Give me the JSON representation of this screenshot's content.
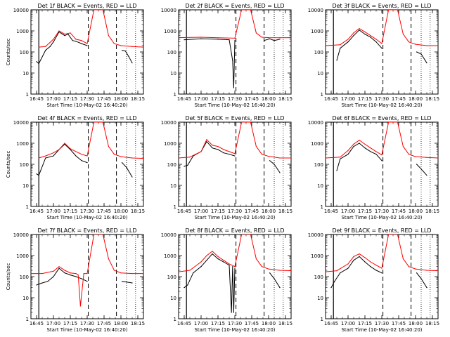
{
  "chart_data": [
    {
      "type": "line",
      "title": "Det 1f BLACK = Events, RED = LLD",
      "xlabel": "Start Time (10-May-02 16:40:20)",
      "ylabel": "Counts/sec",
      "xlim": [
        "16:40",
        "18:20"
      ],
      "ylim": [
        1,
        10000
      ],
      "yscale": "log",
      "xtick_labels": [
        "16:45",
        "17:00",
        "17:15",
        "17:30",
        "17:45",
        "18:00",
        "18:15"
      ],
      "ytick_labels": [
        "1",
        "10",
        "100",
        "1000",
        "10000"
      ],
      "series": [
        {
          "color": "#000000",
          "x": [
            "16:45",
            "16:47",
            "16:53",
            "16:57",
            "17:00",
            "17:05",
            "17:10",
            "17:13",
            "17:17",
            "17:20",
            "17:25",
            "17:30",
            "17:31",
            "18:01",
            "18:04",
            "18:07",
            "18:10"
          ],
          "values": [
            35,
            28,
            120,
            180,
            300,
            900,
            600,
            700,
            350,
            320,
            250,
            200,
            null,
            120,
            110,
            60,
            30
          ]
        },
        {
          "color": "#ff0000",
          "x": [
            "16:47",
            "16:53",
            "17:00",
            "17:05",
            "17:10",
            "17:15",
            "17:20",
            "17:25",
            "17:30",
            "17:36",
            "17:40",
            "17:44",
            "17:49",
            "17:54",
            "18:00",
            "18:10",
            "18:20"
          ],
          "values": [
            170,
            180,
            400,
            1000,
            700,
            800,
            400,
            350,
            250,
            10000,
            10000,
            10000,
            600,
            250,
            200,
            180,
            170
          ]
        }
      ],
      "dashed_lines": [
        "17:31",
        "17:56"
      ],
      "dotted_lines": [
        "18:05",
        "18:13"
      ],
      "solid_lines": [
        "16:47"
      ]
    },
    {
      "type": "line",
      "title": "Det 2f BLACK = Events, RED = LLD",
      "xlabel": "Start Time (10-May-02 16:40:20)",
      "ylabel": "",
      "xlim": [
        "16:40",
        "18:20"
      ],
      "ylim": [
        1,
        10000
      ],
      "yscale": "log",
      "xtick_labels": [
        "16:45",
        "17:00",
        "17:15",
        "17:30",
        "17:45",
        "18:00",
        "18:15"
      ],
      "ytick_labels": [
        "1",
        "10",
        "100",
        "1000",
        "10000"
      ],
      "series": [
        {
          "color": "#000000",
          "x": [
            "16:45",
            "17:00",
            "17:15",
            "17:25",
            "17:28",
            "17:29",
            "17:30",
            "17:31",
            "17:56",
            "18:01",
            "18:05",
            "18:10"
          ],
          "values": [
            380,
            420,
            400,
            380,
            40,
            2,
            350,
            null,
            350,
            420,
            350,
            400
          ]
        },
        {
          "color": "#ff0000",
          "x": [
            "16:40",
            "17:00",
            "17:15",
            "17:30",
            "17:36",
            "17:40",
            "17:44",
            "17:49",
            "17:54",
            "18:00",
            "18:10",
            "18:20"
          ],
          "values": [
            480,
            500,
            470,
            450,
            10000,
            10000,
            10000,
            800,
            500,
            480,
            470,
            480
          ]
        }
      ],
      "dashed_lines": [
        "17:31",
        "17:56"
      ],
      "dotted_lines": [
        "18:05",
        "18:13"
      ],
      "solid_lines": [
        "16:47"
      ]
    },
    {
      "type": "line",
      "title": "Det 3f BLACK = Events, RED = LLD",
      "xlabel": "Start Time (10-May-02 16:40:20)",
      "ylabel": "",
      "xlim": [
        "16:40",
        "18:20"
      ],
      "ylim": [
        1,
        10000
      ],
      "yscale": "log",
      "xtick_labels": [
        "16:45",
        "17:00",
        "17:15",
        "17:30",
        "17:45",
        "18:00",
        "18:15"
      ],
      "ytick_labels": [
        "1",
        "10",
        "100",
        "1000",
        "10000"
      ],
      "series": [
        {
          "color": "#000000",
          "x": [
            "16:50",
            "16:53",
            "17:00",
            "17:05",
            "17:10",
            "17:15",
            "17:20",
            "17:25",
            "17:30",
            "17:31",
            "18:01",
            "18:05",
            "18:10"
          ],
          "values": [
            40,
            150,
            300,
            600,
            1100,
            700,
            500,
            300,
            150,
            null,
            100,
            80,
            30
          ]
        },
        {
          "color": "#ff0000",
          "x": [
            "16:40",
            "16:53",
            "17:00",
            "17:05",
            "17:10",
            "17:15",
            "17:20",
            "17:25",
            "17:30",
            "17:36",
            "17:40",
            "17:44",
            "17:49",
            "17:54",
            "18:00",
            "18:10",
            "18:20"
          ],
          "values": [
            200,
            220,
            400,
            800,
            1300,
            900,
            600,
            400,
            250,
            10000,
            10000,
            10000,
            700,
            300,
            230,
            200,
            200
          ]
        }
      ],
      "dashed_lines": [
        "17:31",
        "17:56"
      ],
      "dotted_lines": [
        "18:05",
        "18:13"
      ],
      "solid_lines": [
        "16:47"
      ]
    },
    {
      "type": "line",
      "title": "Det 4f BLACK = Events, RED = LLD",
      "xlabel": "Start Time (10-May-02 16:40:20)",
      "ylabel": "Counts/sec",
      "xlim": [
        "16:40",
        "18:20"
      ],
      "ylim": [
        1,
        10000
      ],
      "yscale": "log",
      "xtick_labels": [
        "16:45",
        "17:00",
        "17:15",
        "17:30",
        "17:45",
        "18:00",
        "18:15"
      ],
      "ytick_labels": [
        "1",
        "10",
        "100",
        "1000",
        "10000"
      ],
      "series": [
        {
          "color": "#000000",
          "x": [
            "16:45",
            "16:47",
            "16:53",
            "17:00",
            "17:05",
            "17:10",
            "17:15",
            "17:20",
            "17:25",
            "17:30",
            "17:31",
            "18:01",
            "18:05",
            "18:10"
          ],
          "values": [
            35,
            30,
            200,
            250,
            500,
            900,
            500,
            250,
            150,
            120,
            null,
            120,
            70,
            25
          ]
        },
        {
          "color": "#ff0000",
          "x": [
            "16:47",
            "16:53",
            "17:00",
            "17:05",
            "17:10",
            "17:15",
            "17:20",
            "17:25",
            "17:30",
            "17:36",
            "17:40",
            "17:44",
            "17:49",
            "17:54",
            "18:00",
            "18:10",
            "18:20"
          ],
          "values": [
            200,
            250,
            350,
            500,
            1000,
            550,
            400,
            300,
            250,
            10000,
            10000,
            10000,
            700,
            300,
            230,
            200,
            190
          ]
        }
      ],
      "dashed_lines": [
        "17:31",
        "17:56"
      ],
      "dotted_lines": [
        "18:05",
        "18:13"
      ],
      "solid_lines": [
        "16:47"
      ]
    },
    {
      "type": "line",
      "title": "Det 5f BLACK = Events, RED = LLD",
      "xlabel": "Start Time (10-May-02 16:40:20)",
      "ylabel": "",
      "xlim": [
        "16:40",
        "18:20"
      ],
      "ylim": [
        1,
        10000
      ],
      "yscale": "log",
      "xtick_labels": [
        "16:45",
        "17:00",
        "17:15",
        "17:30",
        "17:45",
        "18:00",
        "18:15"
      ],
      "ytick_labels": [
        "1",
        "10",
        "100",
        "1000",
        "10000"
      ],
      "series": [
        {
          "color": "#000000",
          "x": [
            "16:45",
            "16:48",
            "16:53",
            "17:00",
            "17:05",
            "17:10",
            "17:15",
            "17:20",
            "17:25",
            "17:30",
            "17:31",
            "18:01",
            "18:05",
            "18:10"
          ],
          "values": [
            80,
            90,
            250,
            400,
            1200,
            600,
            500,
            350,
            300,
            250,
            null,
            150,
            100,
            40
          ]
        },
        {
          "color": "#ff0000",
          "x": [
            "16:40",
            "16:50",
            "17:00",
            "17:05",
            "17:10",
            "17:15",
            "17:20",
            "17:25",
            "17:30",
            "17:36",
            "17:40",
            "17:44",
            "17:49",
            "17:54",
            "18:00",
            "18:10",
            "18:20"
          ],
          "values": [
            200,
            220,
            400,
            1500,
            800,
            700,
            500,
            400,
            320,
            10000,
            10000,
            10000,
            700,
            300,
            240,
            200,
            200
          ]
        }
      ],
      "dashed_lines": [
        "17:31",
        "17:56"
      ],
      "dotted_lines": [
        "18:05",
        "18:13"
      ],
      "solid_lines": [
        "16:47"
      ]
    },
    {
      "type": "line",
      "title": "Det 6f BLACK = Events, RED = LLD",
      "xlabel": "Start Time (10-May-02 16:40:20)",
      "ylabel": "",
      "xlim": [
        "16:40",
        "18:20"
      ],
      "ylim": [
        1,
        10000
      ],
      "yscale": "log",
      "xtick_labels": [
        "16:45",
        "17:00",
        "17:15",
        "17:30",
        "17:45",
        "18:00",
        "18:15"
      ],
      "ytick_labels": [
        "1",
        "10",
        "100",
        "1000",
        "10000"
      ],
      "series": [
        {
          "color": "#000000",
          "x": [
            "16:50",
            "16:53",
            "17:00",
            "17:05",
            "17:10",
            "17:15",
            "17:20",
            "17:25",
            "17:30",
            "17:31",
            "18:01",
            "18:05",
            "18:10"
          ],
          "values": [
            50,
            180,
            300,
            700,
            1000,
            600,
            400,
            300,
            150,
            null,
            100,
            60,
            30
          ]
        },
        {
          "color": "#ff0000",
          "x": [
            "16:40",
            "16:53",
            "17:00",
            "17:05",
            "17:10",
            "17:15",
            "17:20",
            "17:25",
            "17:30",
            "17:36",
            "17:40",
            "17:44",
            "17:49",
            "17:54",
            "18:00",
            "18:10",
            "18:20"
          ],
          "values": [
            200,
            220,
            450,
            900,
            1400,
            900,
            600,
            400,
            280,
            10000,
            10000,
            10000,
            700,
            300,
            230,
            210,
            200
          ]
        }
      ],
      "dashed_lines": [
        "17:31",
        "17:56"
      ],
      "dotted_lines": [
        "18:05",
        "18:13"
      ],
      "solid_lines": [
        "16:47"
      ]
    },
    {
      "type": "line",
      "title": "Det 7f BLACK = Events, RED = LLD",
      "xlabel": "Start Time (10-May-02 16:40:20)",
      "ylabel": "Counts/sec",
      "xlim": [
        "16:40",
        "18:20"
      ],
      "ylim": [
        1,
        10000
      ],
      "yscale": "log",
      "xtick_labels": [
        "16:45",
        "17:00",
        "17:15",
        "17:30",
        "17:45",
        "18:00",
        "18:15"
      ],
      "ytick_labels": [
        "1",
        "10",
        "100",
        "1000",
        "10000"
      ],
      "series": [
        {
          "color": "#000000",
          "x": [
            "16:45",
            "16:50",
            "16:55",
            "17:00",
            "17:05",
            "17:10",
            "17:15",
            "17:20",
            "17:25",
            "17:30",
            "17:31",
            "18:01",
            "18:05",
            "18:10"
          ],
          "values": [
            40,
            50,
            60,
            100,
            250,
            150,
            120,
            100,
            80,
            60,
            null,
            60,
            55,
            50
          ]
        },
        {
          "color": "#ff0000",
          "x": [
            "16:40",
            "16:50",
            "17:00",
            "17:05",
            "17:10",
            "17:15",
            "17:20",
            "17:22",
            "17:24",
            "17:27",
            "17:30",
            "17:36",
            "17:40",
            "17:44",
            "17:49",
            "17:54",
            "18:00",
            "18:10",
            "18:20"
          ],
          "values": [
            140,
            140,
            180,
            300,
            200,
            150,
            140,
            120,
            4,
            140,
            140,
            10000,
            10000,
            10000,
            700,
            200,
            150,
            140,
            140
          ]
        }
      ],
      "dashed_lines": [
        "17:31",
        "17:56"
      ],
      "dotted_lines": [
        "18:05",
        "18:13"
      ],
      "solid_lines": [
        "16:47"
      ]
    },
    {
      "type": "line",
      "title": "Det 8f BLACK = Events, RED = LLD",
      "xlabel": "Start Time (10-May-02 16:40:20)",
      "ylabel": "",
      "xlim": [
        "16:40",
        "18:20"
      ],
      "ylim": [
        1,
        10000
      ],
      "yscale": "log",
      "xtick_labels": [
        "16:45",
        "17:00",
        "17:15",
        "17:30",
        "17:45",
        "18:00",
        "18:15"
      ],
      "ytick_labels": [
        "1",
        "10",
        "100",
        "1000",
        "10000"
      ],
      "series": [
        {
          "color": "#000000",
          "x": [
            "16:45",
            "16:48",
            "16:53",
            "17:00",
            "17:05",
            "17:10",
            "17:15",
            "17:20",
            "17:25",
            "17:27",
            "17:28",
            "17:29",
            "17:30",
            "17:31",
            "18:01",
            "18:05",
            "18:10"
          ],
          "values": [
            30,
            40,
            150,
            300,
            600,
            1200,
            700,
            500,
            350,
            2,
            300,
            2,
            250,
            null,
            150,
            80,
            30
          ]
        },
        {
          "color": "#ff0000",
          "x": [
            "16:40",
            "16:50",
            "17:00",
            "17:05",
            "17:10",
            "17:15",
            "17:20",
            "17:25",
            "17:30",
            "17:36",
            "17:40",
            "17:44",
            "17:49",
            "17:54",
            "18:00",
            "18:10",
            "18:20"
          ],
          "values": [
            170,
            200,
            500,
            1000,
            1600,
            900,
            600,
            400,
            300,
            10000,
            10000,
            10000,
            700,
            300,
            230,
            200,
            190
          ]
        }
      ],
      "dashed_lines": [
        "17:31",
        "17:56"
      ],
      "dotted_lines": [
        "18:05",
        "18:13"
      ],
      "solid_lines": [
        "16:47"
      ]
    },
    {
      "type": "line",
      "title": "Det 9f BLACK = Events, RED = LLD",
      "xlabel": "Start Time (10-May-02 16:40:20)",
      "ylabel": "",
      "xlim": [
        "16:40",
        "18:20"
      ],
      "ylim": [
        1,
        10000
      ],
      "yscale": "log",
      "xtick_labels": [
        "16:45",
        "17:00",
        "17:15",
        "17:30",
        "17:45",
        "18:00",
        "18:15"
      ],
      "ytick_labels": [
        "1",
        "10",
        "100",
        "1000",
        "10000"
      ],
      "series": [
        {
          "color": "#000000",
          "x": [
            "16:45",
            "16:48",
            "16:53",
            "17:00",
            "17:05",
            "17:10",
            "17:15",
            "17:20",
            "17:25",
            "17:30",
            "17:31",
            "18:01",
            "18:05",
            "18:10"
          ],
          "values": [
            30,
            60,
            150,
            250,
            600,
            900,
            500,
            300,
            200,
            150,
            null,
            150,
            80,
            30
          ]
        },
        {
          "color": "#ff0000",
          "x": [
            "16:40",
            "16:50",
            "17:00",
            "17:05",
            "17:10",
            "17:15",
            "17:20",
            "17:25",
            "17:30",
            "17:36",
            "17:40",
            "17:44",
            "17:49",
            "17:54",
            "18:00",
            "18:10",
            "18:20"
          ],
          "values": [
            170,
            190,
            400,
            900,
            1200,
            800,
            500,
            350,
            250,
            10000,
            10000,
            10000,
            700,
            300,
            230,
            200,
            190
          ]
        }
      ],
      "dashed_lines": [
        "17:31",
        "17:56"
      ],
      "dotted_lines": [
        "18:05",
        "18:13"
      ],
      "solid_lines": [
        "16:47"
      ]
    }
  ]
}
